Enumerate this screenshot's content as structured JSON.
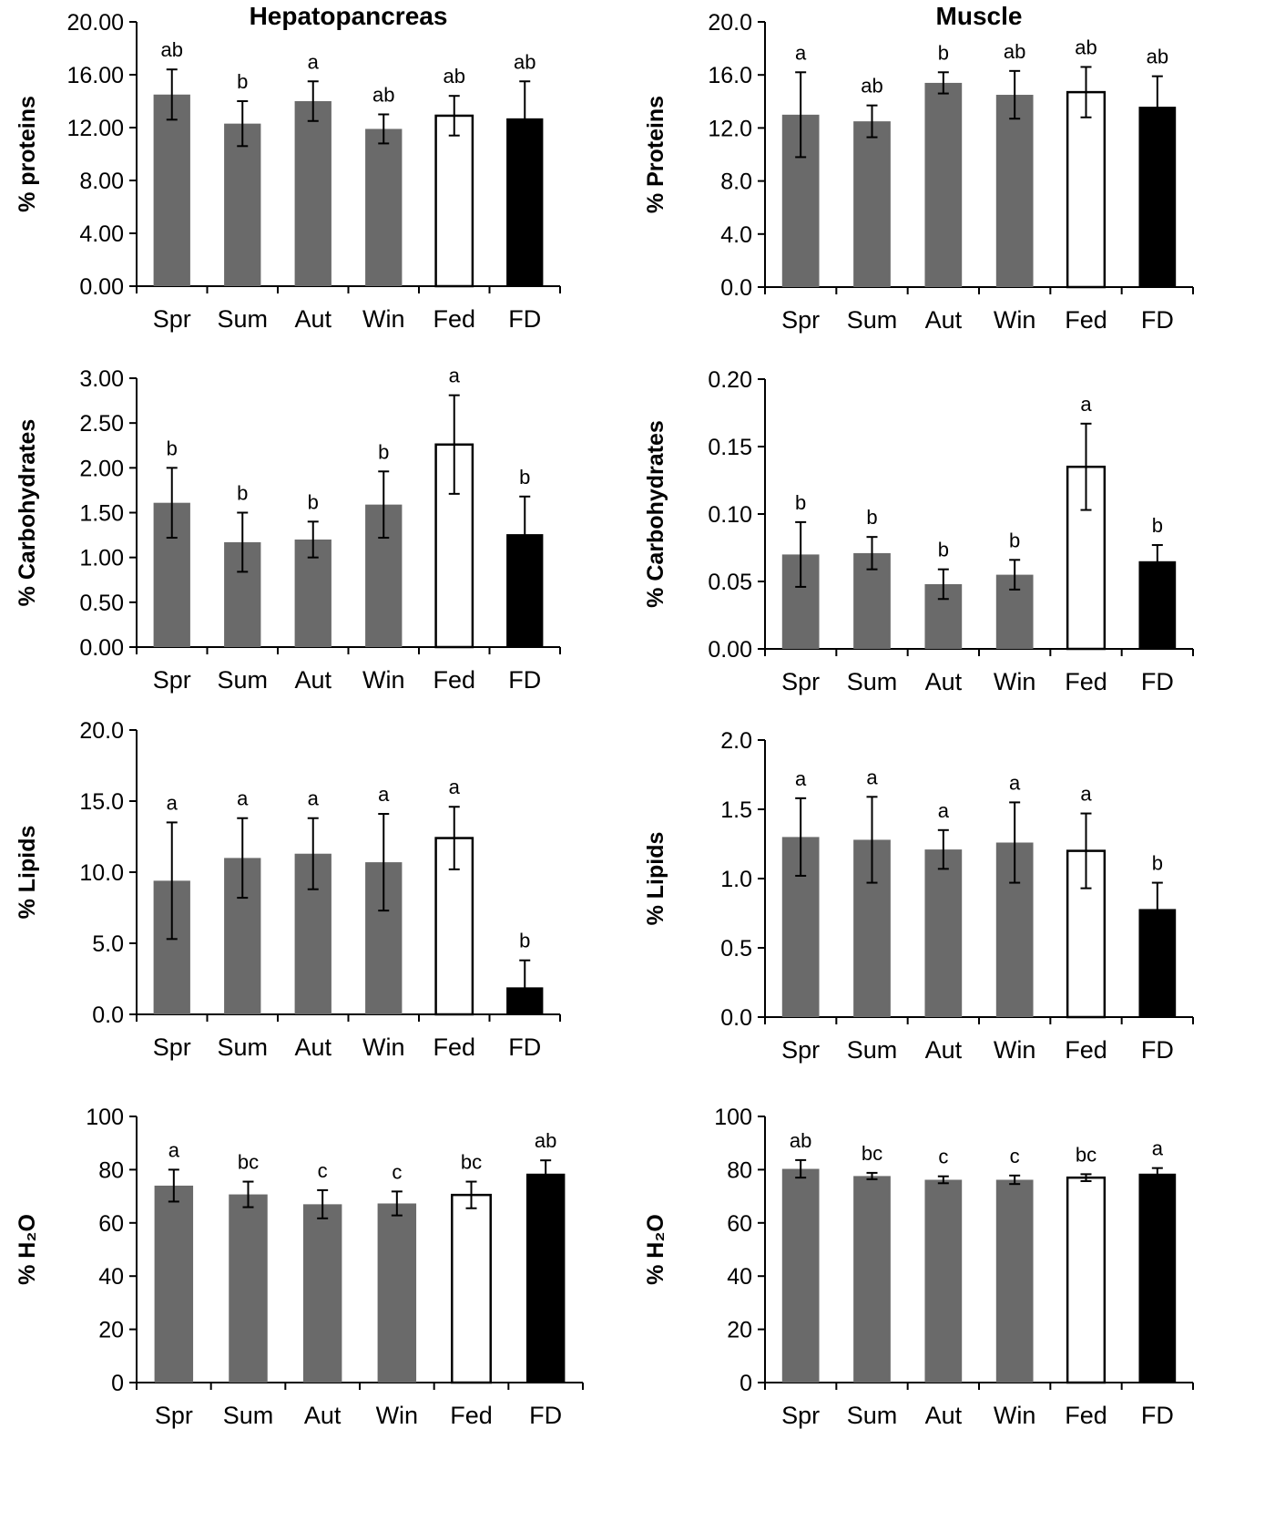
{
  "colors": {
    "season": "#6a6a6a",
    "fed": "#ffffff",
    "fd": "#000000",
    "outline": "#000000"
  },
  "chart_data": [
    {
      "type": "bar",
      "title": "Hepatopancreas",
      "ylabel": "% proteins",
      "categories": [
        "Spr",
        "Sum",
        "Aut",
        "Win",
        "Fed",
        "FD"
      ],
      "values": [
        14.5,
        12.3,
        14.0,
        11.9,
        12.9,
        12.7
      ],
      "errors": [
        1.9,
        1.7,
        1.5,
        1.1,
        1.5,
        2.8
      ],
      "significance": [
        "ab",
        "b",
        "a",
        "ab",
        "ab",
        "ab"
      ],
      "ylim": [
        0,
        20
      ],
      "yticks": [
        "0.00",
        "4.00",
        "8.00",
        "12.00",
        "16.00",
        "20.00"
      ]
    },
    {
      "type": "bar",
      "title": "Muscle",
      "ylabel": "% Proteins",
      "categories": [
        "Spr",
        "Sum",
        "Aut",
        "Win",
        "Fed",
        "FD"
      ],
      "values": [
        13.0,
        12.5,
        15.4,
        14.5,
        14.7,
        13.6
      ],
      "errors": [
        3.2,
        1.2,
        0.8,
        1.8,
        1.9,
        2.3
      ],
      "significance": [
        "a",
        "ab",
        "b",
        "ab",
        "ab",
        "ab"
      ],
      "ylim": [
        0,
        20
      ],
      "yticks": [
        "0.0",
        "4.0",
        "8.0",
        "12.0",
        "16.0",
        "20.0"
      ]
    },
    {
      "type": "bar",
      "title": "",
      "ylabel": "% Carbohydrates",
      "categories": [
        "Spr",
        "Sum",
        "Aut",
        "Win",
        "Fed",
        "FD"
      ],
      "values": [
        1.61,
        1.17,
        1.2,
        1.59,
        2.26,
        1.26
      ],
      "errors": [
        0.39,
        0.33,
        0.2,
        0.37,
        0.55,
        0.42
      ],
      "significance": [
        "b",
        "b",
        "b",
        "b",
        "a",
        "b"
      ],
      "ylim": [
        0,
        3
      ],
      "yticks": [
        "0.00",
        "0.50",
        "1.00",
        "1.50",
        "2.00",
        "2.50",
        "3.00"
      ]
    },
    {
      "type": "bar",
      "title": "",
      "ylabel": "% Carbohydrates",
      "categories": [
        "Spr",
        "Sum",
        "Aut",
        "Win",
        "Fed",
        "FD"
      ],
      "values": [
        0.07,
        0.071,
        0.048,
        0.055,
        0.135,
        0.065
      ],
      "errors": [
        0.024,
        0.012,
        0.011,
        0.011,
        0.032,
        0.012
      ],
      "significance": [
        "b",
        "b",
        "b",
        "b",
        "a",
        "b"
      ],
      "ylim": [
        0,
        0.2
      ],
      "yticks": [
        "0.00",
        "0.05",
        "0.10",
        "0.15",
        "0.20"
      ]
    },
    {
      "type": "bar",
      "title": "",
      "ylabel": "% Lipids",
      "categories": [
        "Spr",
        "Sum",
        "Aut",
        "Win",
        "Fed",
        "FD"
      ],
      "values": [
        9.4,
        11.0,
        11.3,
        10.7,
        12.4,
        1.9
      ],
      "errors": [
        4.1,
        2.8,
        2.5,
        3.4,
        2.2,
        1.9
      ],
      "significance": [
        "a",
        "a",
        "a",
        "a",
        "a",
        "b"
      ],
      "ylim": [
        0,
        20
      ],
      "yticks": [
        "0.0",
        "5.0",
        "10.0",
        "15.0",
        "20.0"
      ]
    },
    {
      "type": "bar",
      "title": "",
      "ylabel": "% Lipids",
      "categories": [
        "Spr",
        "Sum",
        "Aut",
        "Win",
        "Fed",
        "FD"
      ],
      "values": [
        1.3,
        1.28,
        1.21,
        1.26,
        1.2,
        0.78
      ],
      "errors": [
        0.28,
        0.31,
        0.14,
        0.29,
        0.27,
        0.19
      ],
      "significance": [
        "a",
        "a",
        "a",
        "a",
        "a",
        "b"
      ],
      "ylim": [
        0,
        2
      ],
      "yticks": [
        "0.0",
        "0.5",
        "1.0",
        "1.5",
        "2.0"
      ]
    },
    {
      "type": "bar",
      "title": "",
      "ylabel": "% H₂O",
      "categories": [
        "Spr",
        "Sum",
        "Aut",
        "Win",
        "Fed",
        "FD"
      ],
      "values": [
        74,
        70.7,
        67,
        67.3,
        70.5,
        78.5
      ],
      "errors": [
        6,
        4.8,
        5.3,
        4.5,
        5,
        5
      ],
      "significance": [
        "a",
        "bc",
        "c",
        "c",
        "bc",
        "ab"
      ],
      "ylim": [
        0,
        100
      ],
      "yticks": [
        "0",
        "20",
        "40",
        "60",
        "80",
        "100"
      ]
    },
    {
      "type": "bar",
      "title": "",
      "ylabel": "% H₂O",
      "categories": [
        "Spr",
        "Sum",
        "Aut",
        "Win",
        "Fed",
        "FD"
      ],
      "values": [
        80.3,
        77.6,
        76.2,
        76.2,
        77,
        78.5
      ],
      "errors": [
        3.3,
        1.2,
        1.3,
        1.6,
        1.3,
        2.1
      ],
      "significance": [
        "ab",
        "bc",
        "c",
        "c",
        "bc",
        "a"
      ],
      "ylim": [
        0,
        100
      ],
      "yticks": [
        "0",
        "20",
        "40",
        "60",
        "80",
        "100"
      ]
    }
  ]
}
